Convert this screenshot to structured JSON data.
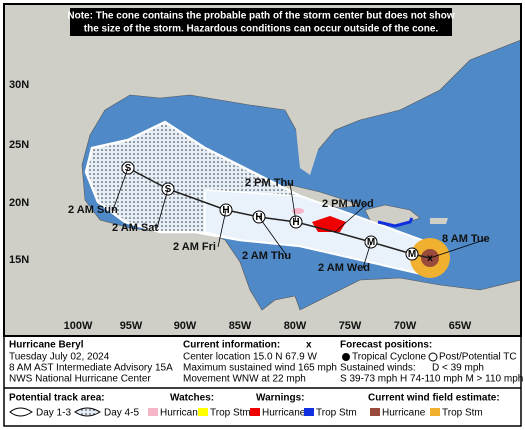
{
  "map": {
    "note_lines": [
      "Note: The cone contains the probable path of the storm center but does not show",
      "the size of the storm. Hazardous conditions can occur outside of the cone."
    ],
    "latitude_labels": [
      "30N",
      "25N",
      "20N",
      "15N"
    ],
    "longitude_labels": [
      "100W",
      "95W",
      "90W",
      "85W",
      "80W",
      "75W",
      "70W",
      "65W"
    ],
    "track_markers": [
      "S",
      "S",
      "H",
      "H",
      "H",
      "M",
      "M"
    ],
    "forecast_labels": [
      "2 AM Sun",
      "2 AM Sat",
      "2 AM Fri",
      "2 AM Thu",
      "2 PM Thu",
      "2 PM Wed",
      "2 AM Wed",
      "8 AM Tue"
    ]
  },
  "storm": {
    "name": "Hurricane Beryl",
    "date": "Tuesday July 02, 2024",
    "advisory": "8 AM AST Intermediate Advisory 15A",
    "source": "NWS National Hurricane Center"
  },
  "current_info": {
    "title": "Current information:",
    "symbol": "x",
    "center": "Center location 15.0 N 67.9 W",
    "wind": "Maximum sustained wind 165 mph",
    "movement": "Movement WNW at 22 mph"
  },
  "forecast_positions": {
    "title": "Forecast positions:",
    "tropical": "Tropical Cyclone",
    "post": "Post/Potential TC",
    "sustained": "Sustained winds:",
    "depression": "D < 39 mph",
    "categories": "S 39-73 mph  H 74-110 mph  M > 110 mph"
  },
  "legend": {
    "track_area": {
      "title": "Potential track area:",
      "day13": "Day 1-3",
      "day45": "Day 4-5"
    },
    "watches": {
      "title": "Watches:",
      "hurricane": "Hurricane",
      "trop": "Trop Stm"
    },
    "warnings": {
      "title": "Warnings:",
      "hurricane": "Hurricane",
      "trop": "Trop Stm"
    },
    "wind_field": {
      "title": "Current wind field estimate:",
      "hurricane": "Hurricane",
      "trop": "Trop Stm"
    }
  }
}
